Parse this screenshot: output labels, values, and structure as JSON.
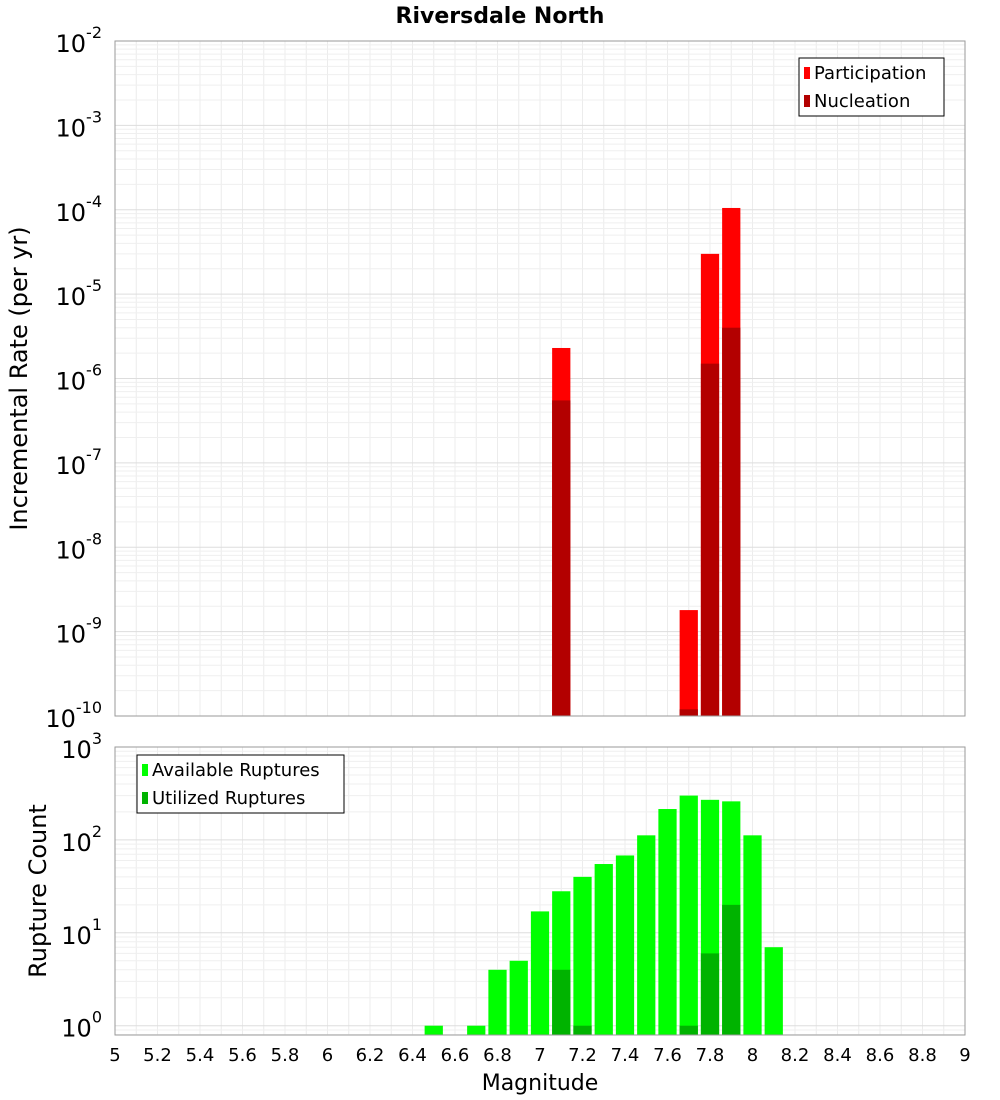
{
  "chart_data": {
    "title": "Riversdale North",
    "xlabel": "Magnitude",
    "x_ticks": [
      "5",
      "5.2",
      "5.4",
      "5.6",
      "5.8",
      "6",
      "6.2",
      "6.4",
      "6.6",
      "6.8",
      "7",
      "7.2",
      "7.4",
      "7.6",
      "7.8",
      "8",
      "8.2",
      "8.4",
      "8.6",
      "8.8",
      "9"
    ],
    "xlim": [
      5,
      9
    ],
    "bin_width": 0.1,
    "panels": [
      {
        "type": "bar",
        "ylabel": "Incremental Rate (per yr)",
        "yscale": "log",
        "ylim_exp": [
          -10,
          -2
        ],
        "y_tick_exponents": [
          "-2",
          "-3",
          "-4",
          "-5",
          "-6",
          "-7",
          "-8",
          "-9",
          "-10"
        ],
        "legend_position": "top-right",
        "series": [
          {
            "name": "Participation",
            "color": "#ff0000",
            "points": [
              {
                "x": 7.1,
                "y": 2.3e-06
              },
              {
                "x": 7.7,
                "y": 1.8e-09
              },
              {
                "x": 7.8,
                "y": 3e-05
              },
              {
                "x": 7.9,
                "y": 0.000105
              }
            ]
          },
          {
            "name": "Nucleation",
            "color": "#b30000",
            "points": [
              {
                "x": 7.1,
                "y": 5.5e-07
              },
              {
                "x": 7.7,
                "y": 1.2e-10
              },
              {
                "x": 7.8,
                "y": 1.5e-06
              },
              {
                "x": 7.9,
                "y": 4e-06
              }
            ]
          }
        ]
      },
      {
        "type": "bar",
        "ylabel": "Rupture Count",
        "yscale": "log",
        "ylim_exp": [
          -0.1,
          3
        ],
        "y_tick_exponents": [
          "3",
          "2",
          "1",
          "0"
        ],
        "legend_position": "top-left",
        "series": [
          {
            "name": "Available Ruptures",
            "color": "#00ff00",
            "points": [
              {
                "x": 6.5,
                "y": 1
              },
              {
                "x": 6.7,
                "y": 1
              },
              {
                "x": 6.8,
                "y": 4
              },
              {
                "x": 6.9,
                "y": 5
              },
              {
                "x": 7.0,
                "y": 17
              },
              {
                "x": 7.1,
                "y": 28
              },
              {
                "x": 7.2,
                "y": 40
              },
              {
                "x": 7.3,
                "y": 55
              },
              {
                "x": 7.4,
                "y": 68
              },
              {
                "x": 7.5,
                "y": 112
              },
              {
                "x": 7.6,
                "y": 215
              },
              {
                "x": 7.7,
                "y": 300
              },
              {
                "x": 7.8,
                "y": 270
              },
              {
                "x": 7.9,
                "y": 260
              },
              {
                "x": 8.0,
                "y": 112
              },
              {
                "x": 8.1,
                "y": 7
              }
            ]
          },
          {
            "name": "Utilized Ruptures",
            "color": "#00b300",
            "points": [
              {
                "x": 7.1,
                "y": 4
              },
              {
                "x": 7.2,
                "y": 1
              },
              {
                "x": 7.7,
                "y": 1
              },
              {
                "x": 7.8,
                "y": 6
              },
              {
                "x": 7.9,
                "y": 20
              }
            ]
          }
        ]
      }
    ]
  }
}
